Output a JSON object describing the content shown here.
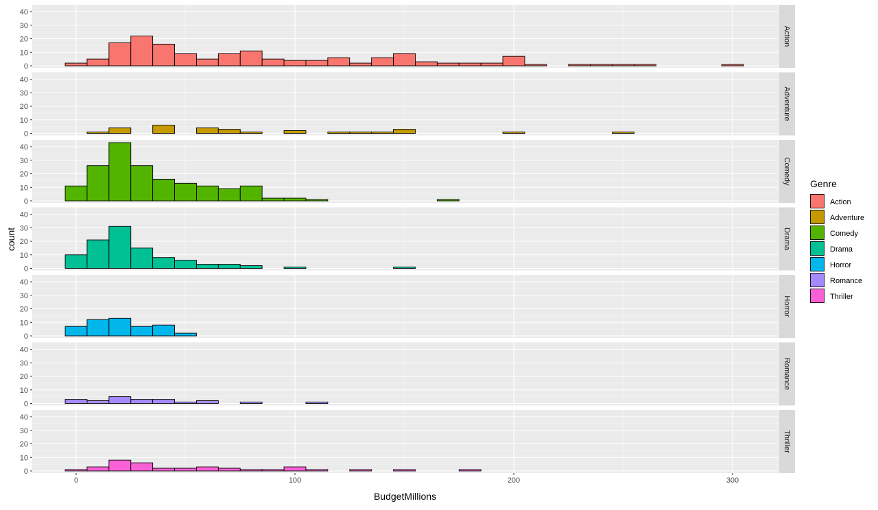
{
  "chart_data": {
    "type": "bar",
    "faceted": true,
    "facet_direction": "rows",
    "xlabel": "BudgetMillions",
    "ylabel": "count",
    "x_ticks": [
      0,
      100,
      200,
      300
    ],
    "y_ticks": [
      0,
      10,
      20,
      30,
      40
    ],
    "xlim": [
      -12,
      320
    ],
    "ylim": [
      0,
      45
    ],
    "bin_width": 10,
    "bin_starts": [
      -5,
      5,
      15,
      25,
      35,
      45,
      55,
      65,
      75,
      85,
      95,
      105,
      115,
      125,
      135,
      145,
      155,
      165,
      175,
      185,
      195,
      205,
      215,
      225,
      235,
      245,
      255,
      265,
      275,
      285,
      295
    ],
    "legend": {
      "title": "Genre",
      "position": "right"
    },
    "grid": true,
    "series": [
      {
        "name": "Action",
        "color": "#F8766D",
        "values": [
          2,
          5,
          17,
          22,
          16,
          9,
          5,
          9,
          11,
          5,
          4,
          4,
          6,
          2,
          6,
          9,
          3,
          2,
          2,
          2,
          7,
          1,
          0,
          1,
          1,
          1,
          1,
          0,
          0,
          0,
          1
        ]
      },
      {
        "name": "Adventure",
        "color": "#C49A00",
        "values": [
          0,
          1,
          4,
          0,
          6,
          0,
          4,
          3,
          1,
          0,
          2,
          0,
          1,
          1,
          1,
          3,
          0,
          0,
          0,
          0,
          1,
          0,
          0,
          0,
          0,
          1,
          0,
          0,
          0,
          0,
          0
        ]
      },
      {
        "name": "Comedy",
        "color": "#53B400",
        "values": [
          11,
          26,
          43,
          26,
          16,
          13,
          11,
          9,
          11,
          2,
          2,
          1,
          0,
          0,
          0,
          0,
          0,
          1,
          0,
          0,
          0,
          0,
          0,
          0,
          0,
          0,
          0,
          0,
          0,
          0,
          0
        ]
      },
      {
        "name": "Drama",
        "color": "#00C094",
        "values": [
          10,
          21,
          31,
          15,
          8,
          6,
          3,
          3,
          2,
          0,
          1,
          0,
          0,
          0,
          0,
          1,
          0,
          0,
          0,
          0,
          0,
          0,
          0,
          0,
          0,
          0,
          0,
          0,
          0,
          0,
          0
        ]
      },
      {
        "name": "Horror",
        "color": "#00B6EB",
        "values": [
          7,
          12,
          13,
          7,
          8,
          2,
          0,
          0,
          0,
          0,
          0,
          0,
          0,
          0,
          0,
          0,
          0,
          0,
          0,
          0,
          0,
          0,
          0,
          0,
          0,
          0,
          0,
          0,
          0,
          0,
          0
        ]
      },
      {
        "name": "Romance",
        "color": "#A58AFF",
        "values": [
          3,
          2,
          5,
          3,
          3,
          1,
          2,
          0,
          1,
          0,
          0,
          1,
          0,
          0,
          0,
          0,
          0,
          0,
          0,
          0,
          0,
          0,
          0,
          0,
          0,
          0,
          0,
          0,
          0,
          0,
          0
        ]
      },
      {
        "name": "Thriller",
        "color": "#FB61D7",
        "values": [
          1,
          3,
          8,
          6,
          2,
          2,
          3,
          2,
          1,
          1,
          3,
          1,
          0,
          1,
          0,
          1,
          0,
          0,
          1,
          0,
          0,
          0,
          0,
          0,
          0,
          0,
          0,
          0,
          0,
          0,
          0
        ]
      }
    ]
  }
}
